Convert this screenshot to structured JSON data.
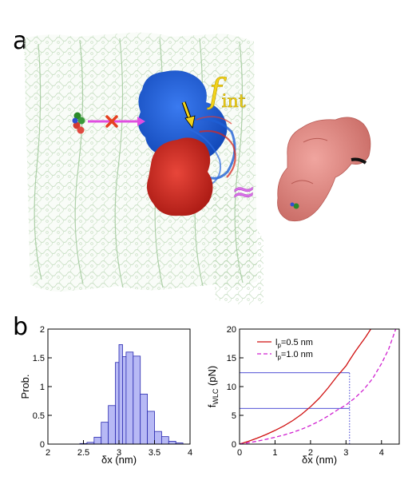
{
  "figure": {
    "panel_a_label": "a",
    "panel_b_label": "b",
    "annotation_f": "f",
    "annotation_f_sub": "int",
    "approx_symbol": "≈"
  },
  "colors": {
    "membrane": "#a9cca3",
    "blue_domain": "#1e5fd6",
    "red_domain": "#d42a22",
    "surface_protein": "#e08a84",
    "arrow_magenta": "#e04ee0",
    "annotation_yellow": "#f2d31a",
    "hist_fill": "#b7b9f5",
    "hist_edge": "#2a2ab0",
    "wlc_red": "#d01010",
    "wlc_magenta": "#d020d0",
    "guide_blue": "#3a3ad0"
  },
  "chart_data": [
    {
      "type": "bar",
      "xlabel": "δx (nm)",
      "ylabel": "Prob.",
      "xlim": [
        2,
        4
      ],
      "ylim": [
        0,
        2
      ],
      "xticks": [
        "2",
        "2.5",
        "3",
        "3.5",
        "4"
      ],
      "yticks": [
        "0",
        "0.5",
        "1",
        "1.5",
        "2"
      ],
      "bins": [
        {
          "x0": 2.45,
          "x1": 2.55,
          "y": 0.01
        },
        {
          "x0": 2.55,
          "x1": 2.65,
          "y": 0.03
        },
        {
          "x0": 2.65,
          "x1": 2.75,
          "y": 0.12
        },
        {
          "x0": 2.75,
          "x1": 2.85,
          "y": 0.38
        },
        {
          "x0": 2.85,
          "x1": 2.95,
          "y": 0.67
        },
        {
          "x0": 2.95,
          "x1": 3.0,
          "y": 1.42
        },
        {
          "x0": 3.0,
          "x1": 3.05,
          "y": 1.73
        },
        {
          "x0": 3.05,
          "x1": 3.1,
          "y": 1.52
        },
        {
          "x0": 3.1,
          "x1": 3.2,
          "y": 1.6
        },
        {
          "x0": 3.2,
          "x1": 3.3,
          "y": 1.53
        },
        {
          "x0": 3.3,
          "x1": 3.4,
          "y": 0.87
        },
        {
          "x0": 3.4,
          "x1": 3.5,
          "y": 0.57
        },
        {
          "x0": 3.5,
          "x1": 3.6,
          "y": 0.22
        },
        {
          "x0": 3.6,
          "x1": 3.7,
          "y": 0.13
        },
        {
          "x0": 3.7,
          "x1": 3.8,
          "y": 0.05
        },
        {
          "x0": 3.8,
          "x1": 3.9,
          "y": 0.02
        }
      ]
    },
    {
      "type": "line",
      "xlabel": "δx (nm)",
      "ylabel": "f",
      "ylabel_sub": "WLC",
      "ylabel_unit": " (pN)",
      "xlim": [
        0,
        4.5
      ],
      "ylim": [
        0,
        20
      ],
      "xticks": [
        "0",
        "1",
        "2",
        "3",
        "4"
      ],
      "yticks": [
        "0",
        "5",
        "10",
        "15",
        "20"
      ],
      "contour_length_marker": 3.1,
      "horizontal_guides": [
        12.4,
        6.2
      ],
      "series": [
        {
          "name": "l",
          "name_sub": "p",
          "name_rest": "=0.5 nm",
          "style": "solid",
          "color": "#d01010",
          "x": [
            0,
            0.25,
            0.5,
            0.75,
            1.0,
            1.25,
            1.5,
            1.75,
            2.0,
            2.25,
            2.5,
            2.75,
            3.0,
            3.1,
            3.25,
            3.4,
            3.55,
            3.7
          ],
          "y": [
            0,
            0.49,
            1.04,
            1.66,
            2.37,
            3.16,
            4.1,
            5.2,
            6.5,
            8.0,
            9.8,
            11.8,
            13.6,
            14.6,
            16.0,
            17.3,
            18.6,
            20.0
          ]
        },
        {
          "name": "l",
          "name_sub": "p",
          "name_rest": "=1.0 nm",
          "style": "dashed",
          "color": "#d020d0",
          "x": [
            0,
            0.25,
            0.5,
            0.75,
            1.0,
            1.25,
            1.5,
            1.75,
            2.0,
            2.25,
            2.5,
            2.75,
            3.0,
            3.1,
            3.25,
            3.5,
            3.75,
            4.0,
            4.2,
            4.4
          ],
          "y": [
            0,
            0.24,
            0.52,
            0.83,
            1.18,
            1.58,
            2.05,
            2.6,
            3.25,
            4.0,
            4.9,
            5.9,
            6.8,
            7.3,
            8.0,
            9.5,
            11.4,
            14.0,
            16.5,
            20.0
          ]
        }
      ]
    }
  ]
}
